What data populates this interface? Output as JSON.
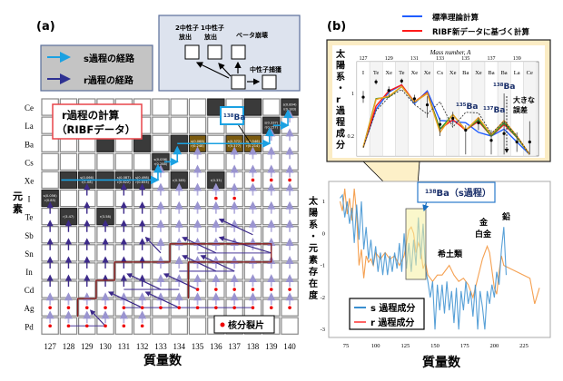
{
  "panel_a": {
    "label": "(a)",
    "legend": {
      "s_path": "s過程の経路",
      "r_path": "r過程の経路",
      "s_color": "#1ba1e2",
      "r_color": "#2e3192"
    },
    "decay_legend": {
      "two_n": [
        "2中性子",
        "放出"
      ],
      "one_n": [
        "1中性子",
        "放出"
      ],
      "beta": "ベータ崩壊",
      "capture": "中性子捕獲"
    },
    "callout": [
      "r過程の計算",
      "（RIBFデータ）"
    ],
    "ba138_label": {
      "mass": "138",
      "element": "Ba"
    },
    "elements": [
      "Ce",
      "La",
      "Ba",
      "Cs",
      "Xe",
      "I",
      "Te",
      "Sb",
      "Sn",
      "In",
      "Cd",
      "Ag",
      "Pd"
    ],
    "y_axis_label": "元素",
    "masses": [
      "127",
      "128",
      "129",
      "130",
      "131",
      "132",
      "133",
      "134",
      "135",
      "136",
      "137",
      "138",
      "139",
      "140"
    ],
    "x_axis_label": "質量数",
    "fission_legend": "核分裂片",
    "stable_cells": [
      {
        "el": "Ce",
        "mass": "136"
      },
      {
        "el": "Ce",
        "mass": "138"
      },
      {
        "el": "Ba",
        "mass": "130"
      },
      {
        "el": "Ba",
        "mass": "132"
      },
      {
        "el": "Ba",
        "mass": "134"
      },
      {
        "el": "Xe",
        "mass": "128"
      },
      {
        "el": "Xe",
        "mass": "130"
      },
      {
        "el": "Ce",
        "mass": "140",
        "text": [
          "s(0.894)",
          "r(0.183)"
        ]
      },
      {
        "el": "La",
        "mass": "139",
        "text": [
          "s(0.337)",
          "r(0.157)"
        ]
      },
      {
        "el": "Ba",
        "mass": "135",
        "text": [
          "s(0.068)",
          "r(0.248)"
        ],
        "gold": true
      },
      {
        "el": "Ba",
        "mass": "137",
        "text": [
          "s(0.372)",
          "r(0.377)"
        ],
        "gold": true
      },
      {
        "el": "Ba",
        "mass": "138",
        "text": [
          "s(0.546)",
          "r(0.214)"
        ],
        "gold": true
      },
      {
        "el": "Cs",
        "mass": "133",
        "text": [
          "s(0.056)",
          "r(0.288)"
        ]
      },
      {
        "el": "Xe",
        "mass": "129",
        "text": [
          "s(0.066)",
          "r(1.08)"
        ]
      },
      {
        "el": "Xe",
        "mass": "131",
        "text": [
          "s(0.087)",
          "r(0.622)"
        ]
      },
      {
        "el": "Xe",
        "mass": "132",
        "text": [
          "s(0.498)",
          "r(0.653)"
        ]
      },
      {
        "el": "Xe",
        "mass": "134",
        "text": [
          "r(0.385)"
        ]
      },
      {
        "el": "Xe",
        "mass": "136",
        "text": [
          "r(0.33)"
        ]
      },
      {
        "el": "I",
        "mass": "127",
        "text": [
          "s(0.056)",
          "r(0.85)"
        ]
      },
      {
        "el": "Te",
        "mass": "128",
        "text": [
          "r(3.47)"
        ]
      },
      {
        "el": "Te",
        "mass": "130",
        "text": [
          "r(3.58)"
        ]
      }
    ]
  },
  "panel_b": {
    "label": "(b)",
    "legend": [
      {
        "label": "標準理論計算",
        "color": "#1f5cff"
      },
      {
        "label": "RIBF新データに基づく計算",
        "color": "#ff1a1a"
      }
    ],
    "inset_y_label": "太陽系・r過程成分",
    "annotations": {
      "ba135": {
        "mass": "135",
        "el": "Ba"
      },
      "ba137": {
        "mass": "137",
        "el": "Ba"
      },
      "ba138": {
        "mass": "138",
        "el": "Ba"
      },
      "large_error": [
        "大きな",
        "誤差"
      ]
    },
    "main_y_label": "太陽系・元素存在度",
    "x_axis_label": "質量数",
    "ba138_s_label": {
      "mass": "138",
      "text": "Ba（s過程）"
    },
    "region_labels": {
      "rare_earth": "希土類",
      "gold": "金",
      "platinum": "白金",
      "lead": "鉛"
    },
    "main_legend": [
      {
        "label": "s 過程成分",
        "color": "#3a8fd0"
      },
      {
        "label": "r 過程成分",
        "color": "#f5a050"
      }
    ]
  },
  "chart_data": [
    {
      "type": "line",
      "title": "",
      "xlabel": "Mass number, A",
      "ylabel": "太陽系・r過程成分",
      "y_scale": "log",
      "ylim": [
        0.094,
        3.3
      ],
      "y_ticks": [
        "1",
        "0.2"
      ],
      "x": [
        127,
        128,
        129,
        130,
        131,
        132,
        133,
        134,
        135,
        136,
        137,
        138,
        139,
        140
      ],
      "x_ticks": [
        "127",
        "129",
        "131",
        "133",
        "135",
        "137",
        "139"
      ],
      "categories": [
        "I",
        "Te",
        "Xe",
        "Te",
        "Xe",
        "Xe",
        "Cs",
        "Xe",
        "Ba",
        "Xe",
        "Ba",
        "Ba",
        "La",
        "Ce"
      ],
      "series": [
        {
          "name": "標準理論計算",
          "color": "#1f5cff",
          "values": [
            0.13,
            0.55,
            1.05,
            1.38,
            0.68,
            1.1,
            0.36,
            0.35,
            0.33,
            0.23,
            0.2,
            0.26,
            0.16,
            0.1
          ]
        },
        {
          "name": "RIBF新データに基づく計算",
          "color": "#ff1a1a",
          "values": [
            0.13,
            0.62,
            1.1,
            1.38,
            0.73,
            1.03,
            0.26,
            0.37,
            0.25,
            0.35,
            0.2,
            0.31,
            0.19,
            0.1
          ]
        },
        {
          "color": "#2a9a2a",
          "values": [
            0.13,
            0.82,
            0.87,
            1.3,
            0.72,
            1.0,
            0.26,
            0.45,
            0.25,
            0.37,
            0.2,
            0.33,
            0.19,
            0.1
          ]
        },
        {
          "color": "#f0a020",
          "values": [
            0.13,
            0.8,
            0.9,
            1.3,
            0.72,
            1.0,
            0.23,
            0.45,
            0.25,
            0.4,
            0.21,
            0.36,
            0.2,
            0.1
          ]
        },
        {
          "color": "#333333",
          "dashed": true,
          "values": [
            0.13,
            0.52,
            0.87,
            1.16,
            0.66,
            0.46,
            0.73,
            0.28,
            0.49,
            0.48,
            0.22,
            0.35,
            0.2,
            0.1
          ]
        }
      ],
      "observed": {
        "x": [
          127,
          128,
          129,
          130,
          131,
          132,
          133,
          134,
          135,
          136,
          137,
          138,
          139,
          140
        ],
        "values": [
          0.87,
          1.55,
          1.12,
          1.6,
          0.82,
          0.65,
          0.31,
          0.39,
          0.25,
          0.33,
          0.17,
          0.22,
          0.16,
          0.16
        ],
        "err_low": [
          0.7,
          1.4,
          0.9,
          1.45,
          0.7,
          0.4,
          0.2,
          0.3,
          0.1,
          0.25,
          0.1,
          0.1,
          0.11,
          0.1
        ],
        "err_high": [
          1.1,
          1.7,
          1.3,
          1.75,
          0.95,
          0.9,
          0.4,
          0.5,
          0.3,
          0.4,
          0.25,
          1.0,
          0.23,
          0.35
        ]
      }
    },
    {
      "type": "line",
      "title": "",
      "xlabel": "質量数",
      "ylabel": "太陽系・元素存在度",
      "xlim": [
        65,
        245
      ],
      "ylim": [
        -3.25,
        1.5
      ],
      "x_ticks": [
        75,
        100,
        125,
        150,
        175,
        200,
        225
      ],
      "y_ticks": [
        1,
        0,
        -1,
        -2,
        -3
      ],
      "series": [
        {
          "name": "s 過程成分",
          "color": "#3a8fd0",
          "points": [
            [
              70,
              1.1
            ],
            [
              72,
              1.2
            ],
            [
              74,
              0.5
            ],
            [
              76,
              1.0
            ],
            [
              78,
              0.3
            ],
            [
              80,
              0.8
            ],
            [
              82,
              -0.3
            ],
            [
              84,
              0.9
            ],
            [
              86,
              -0.2
            ],
            [
              88,
              1.0
            ],
            [
              90,
              -0.5
            ],
            [
              92,
              0.2
            ],
            [
              94,
              -0.8
            ],
            [
              96,
              -0.2
            ],
            [
              98,
              -1.0
            ],
            [
              100,
              -0.4
            ],
            [
              102,
              -1.2
            ],
            [
              104,
              -0.6
            ],
            [
              106,
              -1.3
            ],
            [
              108,
              -0.6
            ],
            [
              110,
              -1.3
            ],
            [
              112,
              -0.7
            ],
            [
              114,
              -1.2
            ],
            [
              116,
              -0.6
            ],
            [
              118,
              -1.1
            ],
            [
              120,
              -0.3
            ],
            [
              122,
              -1.2
            ],
            [
              124,
              0.0
            ],
            [
              126,
              -1.1
            ],
            [
              128,
              -0.3
            ],
            [
              130,
              -1.2
            ],
            [
              132,
              -0.2
            ],
            [
              134,
              -1.0
            ],
            [
              136,
              0.5
            ],
            [
              138,
              -0.8
            ],
            [
              140,
              0.3
            ],
            [
              142,
              -1.1
            ],
            [
              144,
              -1.5
            ],
            [
              146,
              -2.0
            ],
            [
              148,
              -1.5
            ],
            [
              150,
              -3.0
            ],
            [
              152,
              -1.6
            ],
            [
              154,
              -2.4
            ],
            [
              156,
              -1.6
            ],
            [
              158,
              -2.5
            ],
            [
              160,
              -1.5
            ],
            [
              162,
              -2.4
            ],
            [
              164,
              -1.8
            ],
            [
              166,
              -2.8
            ],
            [
              168,
              -1.7
            ],
            [
              170,
              -3.0
            ],
            [
              172,
              -1.8
            ],
            [
              174,
              -2.4
            ],
            [
              176,
              -1.5
            ],
            [
              178,
              -2.2
            ],
            [
              180,
              -1.8
            ],
            [
              182,
              -2.6
            ],
            [
              184,
              -1.6
            ],
            [
              186,
              -3.0
            ],
            [
              188,
              -1.8
            ],
            [
              190,
              -2.3
            ],
            [
              192,
              -3.0
            ],
            [
              194,
              -1.8
            ],
            [
              196,
              -2.2
            ],
            [
              198,
              -1.6
            ],
            [
              200,
              -2.0
            ],
            [
              202,
              -1.2
            ],
            [
              204,
              -1.6
            ],
            [
              206,
              -0.5
            ],
            [
              208,
              0.2
            ],
            [
              210,
              -1.3
            ]
          ]
        },
        {
          "name": "r 過程成分",
          "color": "#f5a050",
          "points": [
            [
              70,
              1.0
            ],
            [
              72,
              0.7
            ],
            [
              74,
              1.4
            ],
            [
              76,
              0.6
            ],
            [
              78,
              1.1
            ],
            [
              80,
              0.4
            ],
            [
              82,
              1.4
            ],
            [
              84,
              0.6
            ],
            [
              86,
              -1.0
            ],
            [
              88,
              -0.5
            ],
            [
              90,
              -1.4
            ],
            [
              92,
              -0.7
            ],
            [
              94,
              -0.9
            ],
            [
              96,
              -0.8
            ],
            [
              98,
              -1.0
            ],
            [
              100,
              -0.6
            ],
            [
              104,
              -0.8
            ],
            [
              108,
              -0.6
            ],
            [
              112,
              -0.8
            ],
            [
              116,
              -0.7
            ],
            [
              120,
              -1.0
            ],
            [
              124,
              -0.7
            ],
            [
              126,
              -0.3
            ],
            [
              128,
              0.1
            ],
            [
              130,
              0.2
            ],
            [
              132,
              0.0
            ],
            [
              134,
              -0.6
            ],
            [
              136,
              -0.3
            ],
            [
              138,
              -0.5
            ],
            [
              140,
              -1.1
            ],
            [
              142,
              -0.9
            ],
            [
              144,
              -1.3
            ],
            [
              148,
              -1.5
            ],
            [
              152,
              -1.3
            ],
            [
              156,
              -1.3
            ],
            [
              160,
              -1.1
            ],
            [
              162,
              -1.0
            ],
            [
              166,
              -1.3
            ],
            [
              170,
              -1.5
            ],
            [
              174,
              -1.4
            ],
            [
              178,
              -1.6
            ],
            [
              182,
              -2.0
            ],
            [
              186,
              -1.4
            ],
            [
              190,
              -0.8
            ],
            [
              194,
              -0.4
            ],
            [
              196,
              -0.6
            ],
            [
              200,
              -1.7
            ],
            [
              202,
              -1.9
            ],
            [
              204,
              -1.2
            ],
            [
              206,
              -0.7
            ],
            [
              208,
              -1.0
            ],
            [
              230,
              -1.4
            ],
            [
              234,
              -2.2
            ],
            [
              238,
              -1.7
            ]
          ]
        }
      ],
      "highlight": {
        "label": "138Ba（s過程）",
        "x_range": [
          125,
          143
        ]
      }
    }
  ]
}
